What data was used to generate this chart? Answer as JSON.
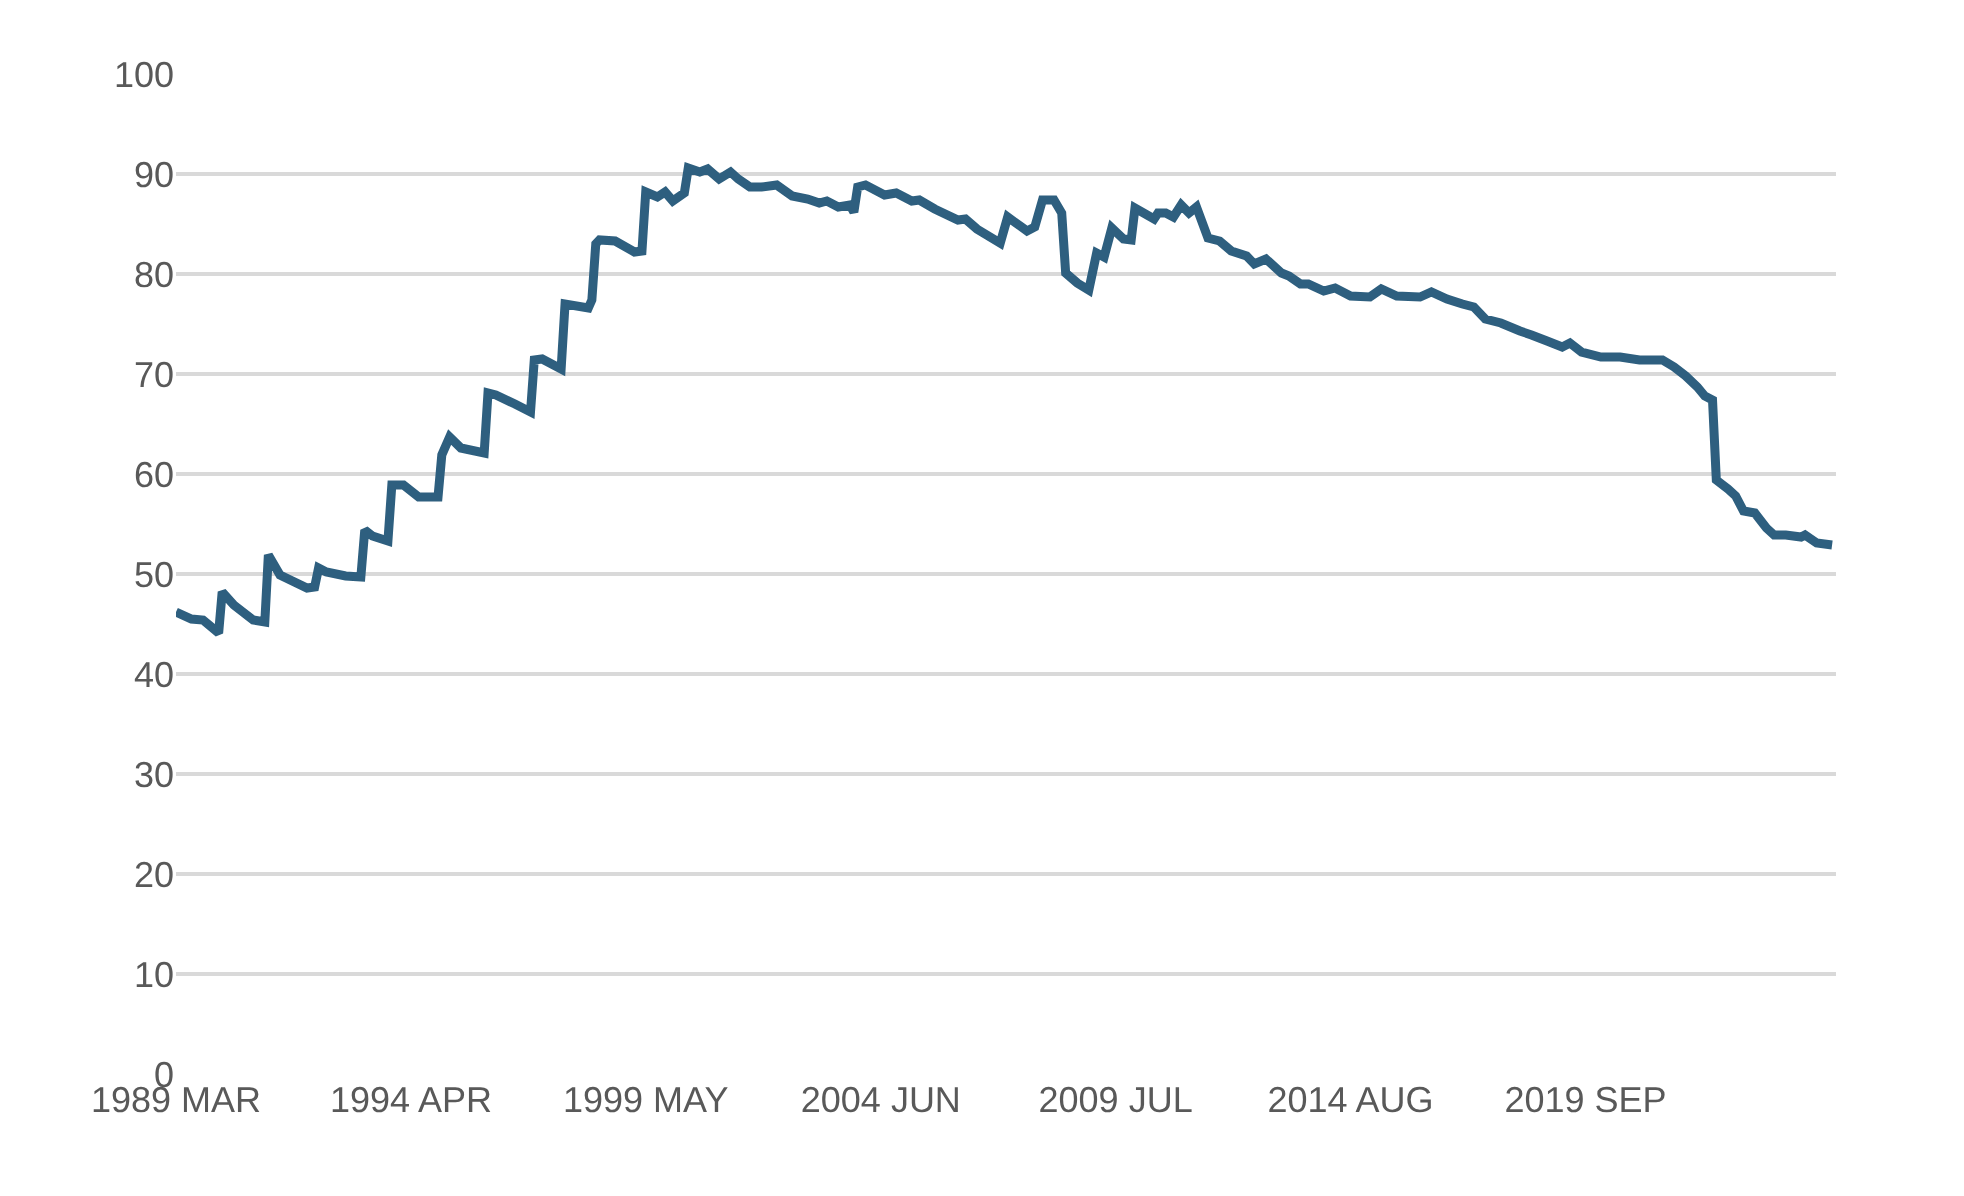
{
  "chart_data": {
    "type": "line",
    "x": [
      "1989-03",
      "1989-07",
      "1989-10",
      "1990-02",
      "1990-03",
      "1990-06",
      "1990-11",
      "1991-02",
      "1991-03",
      "1991-06",
      "1992-01",
      "1992-03",
      "1992-04",
      "1992-06",
      "1992-11",
      "1993-03",
      "1993-04",
      "1993-06",
      "1993-10",
      "1993-11",
      "1994-02",
      "1994-06",
      "1994-11",
      "1994-12",
      "1995-02",
      "1995-05",
      "1995-11",
      "1995-12",
      "1996-02",
      "1996-07",
      "1996-11",
      "1996-12",
      "1997-02",
      "1997-07",
      "1997-08",
      "1998-02",
      "1998-03",
      "1998-04",
      "1998-05",
      "1998-09",
      "1999-02",
      "1999-04",
      "1999-05",
      "1999-08",
      "1999-10",
      "1999-12",
      "2000-03",
      "2000-04",
      "2000-07",
      "2000-09",
      "2000-12",
      "2001-03",
      "2001-05",
      "2001-08",
      "2001-11",
      "2002-03",
      "2002-07",
      "2002-11",
      "2003-02",
      "2003-04",
      "2003-07",
      "2003-10",
      "2003-11",
      "2003-12",
      "2004-02",
      "2004-07",
      "2004-10",
      "2005-02",
      "2005-04",
      "2005-08",
      "2006-02",
      "2006-04",
      "2006-07",
      "2007-01",
      "2007-03",
      "2007-08",
      "2007-10",
      "2007-12",
      "2008-03",
      "2008-05",
      "2008-06",
      "2008-09",
      "2008-12",
      "2009-02",
      "2009-04",
      "2009-06",
      "2009-09",
      "2009-11",
      "2009-12",
      "2010-05",
      "2010-06",
      "2010-08",
      "2010-10",
      "2010-12",
      "2011-02",
      "2011-04",
      "2011-07",
      "2011-10",
      "2012-01",
      "2012-05",
      "2012-07",
      "2012-10",
      "2013-02",
      "2013-04",
      "2013-07",
      "2013-09",
      "2014-01",
      "2014-04",
      "2014-08",
      "2015-01",
      "2015-04",
      "2015-08",
      "2016-02",
      "2016-05",
      "2016-09",
      "2017-01",
      "2017-04",
      "2017-07",
      "2017-11",
      "2018-04",
      "2018-07",
      "2018-11",
      "2019-03",
      "2019-05",
      "2019-08",
      "2020-01",
      "2020-06",
      "2020-11",
      "2021-05",
      "2021-08",
      "2021-11",
      "2022-02",
      "2022-04",
      "2022-06",
      "2022-07",
      "2022-10",
      "2022-12",
      "2023-02",
      "2023-05",
      "2023-08",
      "2023-10",
      "2024-01",
      "2024-05",
      "2024-06",
      "2024-09",
      "2025-01"
    ],
    "series": [
      {
        "color": "#2e5f7f",
        "values": [
          46.2,
          45.5,
          45.4,
          44.1,
          48.2,
          46.9,
          45.4,
          45.2,
          51.9,
          49.9,
          48.6,
          48.7,
          50.6,
          50.2,
          49.8,
          49.7,
          54.4,
          53.8,
          53.3,
          58.9,
          58.9,
          57.7,
          57.7,
          61.9,
          63.7,
          62.6,
          62.1,
          68.1,
          67.9,
          67.0,
          66.2,
          71.4,
          71.5,
          70.5,
          77.0,
          76.6,
          77.4,
          83.0,
          83.4,
          83.3,
          82.2,
          82.3,
          88.2,
          87.7,
          88.2,
          87.3,
          88.1,
          90.6,
          90.2,
          90.5,
          89.5,
          90.2,
          89.5,
          88.7,
          88.7,
          88.9,
          87.8,
          87.5,
          87.1,
          87.3,
          86.7,
          86.9,
          86.2,
          88.7,
          88.9,
          87.9,
          88.1,
          87.3,
          87.4,
          86.5,
          85.4,
          85.5,
          84.5,
          83.1,
          85.7,
          84.3,
          84.7,
          87.4,
          87.4,
          86.1,
          80.1,
          79.1,
          78.4,
          82.1,
          81.7,
          84.6,
          83.5,
          83.4,
          86.6,
          85.5,
          86.1,
          86.1,
          85.7,
          86.9,
          86.1,
          86.7,
          83.6,
          83.3,
          82.3,
          81.8,
          81.0,
          81.5,
          80.1,
          79.8,
          79.0,
          79.0,
          78.3,
          78.6,
          77.8,
          77.7,
          78.5,
          77.8,
          77.7,
          78.2,
          77.5,
          77.0,
          76.7,
          75.5,
          75.1,
          74.3,
          73.9,
          73.3,
          72.7,
          73.1,
          72.2,
          71.7,
          71.7,
          71.4,
          71.4,
          70.7,
          69.8,
          68.7,
          67.8,
          67.4,
          59.4,
          58.5,
          57.8,
          56.3,
          56.1,
          54.6,
          53.9,
          53.9,
          53.7,
          53.9,
          53.1,
          52.9
        ]
      }
    ],
    "xlim": [
      "1989-03",
      "2025-02"
    ],
    "xticks": [
      {
        "value": "1989-03",
        "label": "1989 MAR"
      },
      {
        "value": "1994-04",
        "label": "1994 APR"
      },
      {
        "value": "1999-05",
        "label": "1999 MAY"
      },
      {
        "value": "2004-06",
        "label": "2004 JUN"
      },
      {
        "value": "2009-07",
        "label": "2009 JUL"
      },
      {
        "value": "2014-08",
        "label": "2014 AUG"
      },
      {
        "value": "2019-09",
        "label": "2019 SEP"
      }
    ],
    "ylim": [
      0,
      100
    ],
    "yticks": [
      0,
      10,
      20,
      30,
      40,
      50,
      60,
      70,
      80,
      90,
      100
    ],
    "grid": "y",
    "marker": "none",
    "line_style": "solid"
  }
}
